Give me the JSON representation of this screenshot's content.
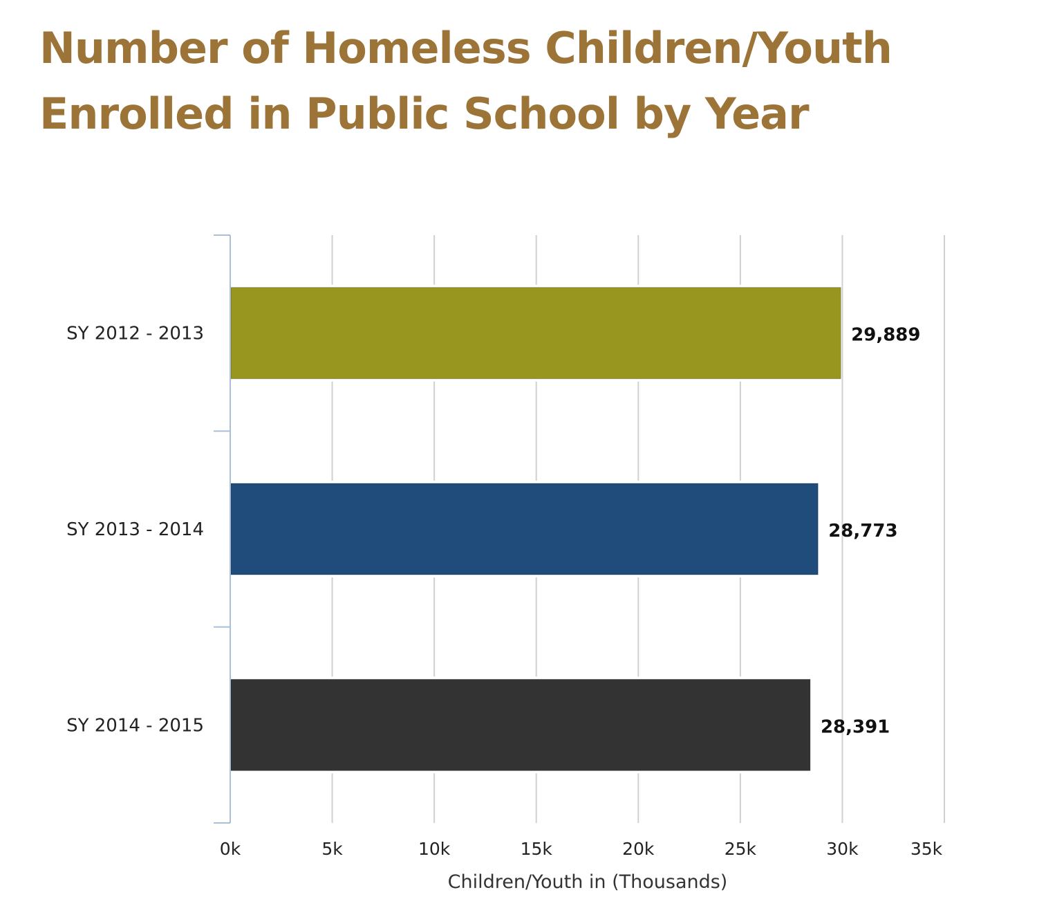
{
  "chart_data": {
    "type": "bar",
    "orientation": "horizontal",
    "title": "Number of Homeless Children/Youth Enrolled in Public School by Year",
    "title_lines": [
      "Number of Homeless Children/Youth",
      "Enrolled in Public School by Year"
    ],
    "categories": [
      "SY 2012 - 2013",
      "SY 2013 - 2014",
      "SY 2014 - 2015"
    ],
    "values": [
      29889,
      28773,
      28391
    ],
    "data_labels": [
      "29,889",
      "28,773",
      "28,391"
    ],
    "colors": [
      "#99961f",
      "#1f4c7a",
      "#333333"
    ],
    "xlabel": "Children/Youth in (Thousands)",
    "ylabel": "",
    "xlim": [
      0,
      35000
    ],
    "xticks": [
      0,
      5000,
      10000,
      15000,
      20000,
      25000,
      30000,
      35000
    ],
    "xtick_labels": [
      "0k",
      "5k",
      "10k",
      "15k",
      "20k",
      "25k",
      "30k",
      "35k"
    ],
    "grid": "vertical",
    "title_color": "#9c7438"
  }
}
